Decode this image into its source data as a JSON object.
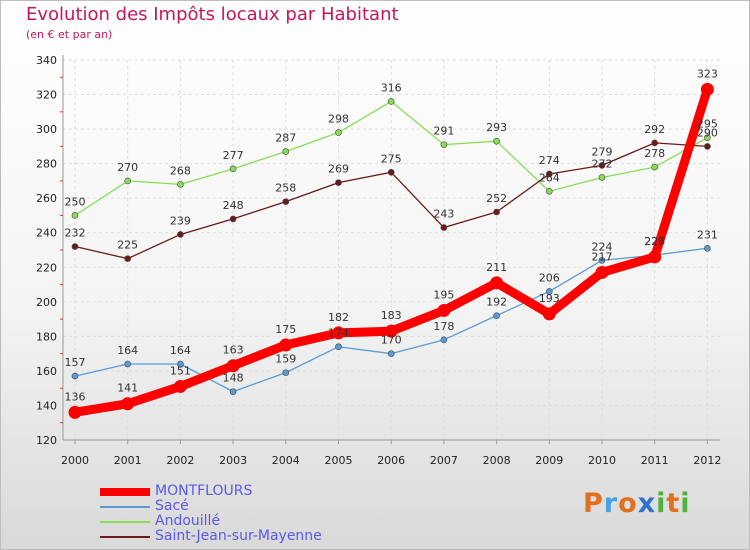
{
  "chart_data": {
    "type": "line",
    "title": "Evolution des Impôts locaux par Habitant",
    "subtitle": "(en € et par an)",
    "x": [
      "2000",
      "2001",
      "2002",
      "2003",
      "2004",
      "2005",
      "2006",
      "2007",
      "2008",
      "2009",
      "2010",
      "2011",
      "2012"
    ],
    "ylim": [
      120,
      340
    ],
    "yticks": [
      "120",
      "140",
      "160",
      "180",
      "200",
      "220",
      "240",
      "260",
      "280",
      "300",
      "320",
      "340"
    ],
    "grid": true,
    "legend_position": "bottom-left",
    "series": [
      {
        "name": "MONTFLOURS",
        "color": "#ff0000",
        "values": [
          136,
          141,
          151,
          163,
          175,
          182,
          183,
          195,
          211,
          193,
          217,
          226,
          323
        ],
        "labels": [
          "136",
          "141",
          "151",
          "163",
          "175",
          "182",
          "183",
          "195",
          "211",
          "193",
          "217",
          "226",
          "323"
        ]
      },
      {
        "name": "Sacé",
        "color": "#5b9bd5",
        "values": [
          157,
          164,
          164,
          148,
          159,
          174,
          170,
          178,
          192,
          206,
          224,
          227,
          231
        ],
        "labels": [
          "157",
          "164",
          "164",
          "148",
          "159",
          "174",
          "170",
          "178",
          "192",
          "206",
          "224",
          "227",
          "231"
        ]
      },
      {
        "name": "Andouillé",
        "color": "#88dd55",
        "values": [
          250,
          270,
          268,
          277,
          287,
          298,
          316,
          291,
          293,
          264,
          272,
          278,
          295
        ],
        "labels": [
          "250",
          "270",
          "268",
          "277",
          "287",
          "298",
          "316",
          "291",
          "293",
          "264",
          "272",
          "278",
          "295"
        ]
      },
      {
        "name": "Saint-Jean-sur-Mayenne",
        "color": "#6b1a1a",
        "values": [
          232,
          225,
          239,
          248,
          258,
          269,
          275,
          243,
          252,
          274,
          279,
          292,
          290
        ],
        "labels": [
          "232",
          "225",
          "239",
          "248",
          "258",
          "269",
          "275",
          "243",
          "252",
          "274",
          "279",
          "292",
          "290"
        ]
      }
    ]
  },
  "logo": {
    "letters": [
      "P",
      "r",
      "o",
      "x",
      "i",
      "t",
      "i"
    ],
    "colors": [
      "#e07020",
      "#4aa0e0",
      "#e07020",
      "#3070d0",
      "#50b040",
      "#e07020",
      "#50b040"
    ]
  }
}
